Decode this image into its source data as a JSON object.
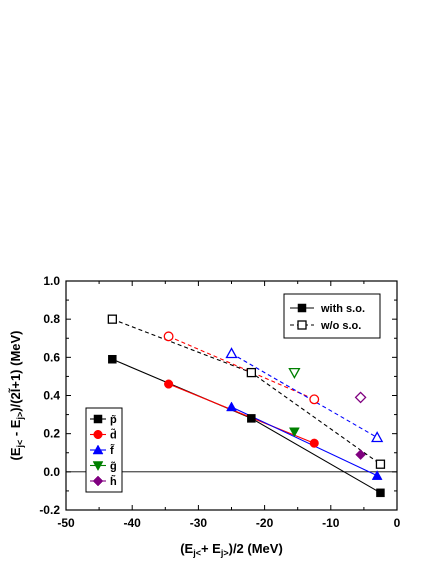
{
  "chart_data": {
    "type": "line",
    "xlabel": "(E_{j<}+ E_{j>})/2 (MeV)",
    "ylabel": "(E_{j<} - E_{j>})/(2l̃+1) (MeV)",
    "xlim": [
      -50,
      0
    ],
    "ylim": [
      -0.2,
      1.0
    ],
    "x_ticks": [
      -50,
      -40,
      -30,
      -20,
      -10,
      0
    ],
    "y_ticks": [
      -0.2,
      0.0,
      0.2,
      0.4,
      0.6,
      0.8,
      1.0
    ],
    "x_tick_labels": [
      "-50",
      "-40",
      "-30",
      "-20",
      "-10",
      "0"
    ],
    "y_tick_labels": [
      "-0.2",
      "0.0",
      "0.2",
      "0.4",
      "0.6",
      "0.8",
      "1.0"
    ],
    "zero_line": 0,
    "series": [
      {
        "name": "p̃",
        "color": "#000000",
        "marker": "square",
        "points": [
          [
            -43.0,
            0.59
          ],
          [
            -22.0,
            0.28
          ],
          [
            -2.5,
            -0.11
          ]
        ],
        "open_points": [
          [
            -43.0,
            0.8
          ],
          [
            -22.0,
            0.52
          ],
          [
            -2.5,
            0.04
          ]
        ]
      },
      {
        "name": "d̃",
        "color": "#ff0000",
        "marker": "circle",
        "points": [
          [
            -34.5,
            0.46
          ],
          [
            -12.5,
            0.15
          ]
        ],
        "open_points": [
          [
            -34.5,
            0.71
          ],
          [
            -12.5,
            0.38
          ]
        ]
      },
      {
        "name": "f̃",
        "color": "#0000ff",
        "marker": "triangle-up",
        "points": [
          [
            -25.0,
            0.34
          ],
          [
            -3.0,
            -0.02
          ]
        ],
        "open_points": [
          [
            -25.0,
            0.62
          ],
          [
            -3.0,
            0.18
          ]
        ]
      },
      {
        "name": "g̃",
        "color": "#008000",
        "marker": "triangle-down",
        "points": [
          [
            -15.5,
            0.21
          ]
        ],
        "open_points": [
          [
            -15.5,
            0.52
          ]
        ]
      },
      {
        "name": "h̃",
        "color": "#800080",
        "marker": "diamond",
        "points": [
          [
            -5.5,
            0.09
          ]
        ],
        "open_points": [
          [
            -5.5,
            0.39
          ]
        ]
      }
    ],
    "style_legend": [
      {
        "label": "with s.o.",
        "line": "solid",
        "marker": "filled-square"
      },
      {
        "label": "w/o  s.o.",
        "line": "dashed",
        "marker": "open-square"
      }
    ],
    "series_legend_position": "bottom-left",
    "style_legend_position": "top-right"
  }
}
